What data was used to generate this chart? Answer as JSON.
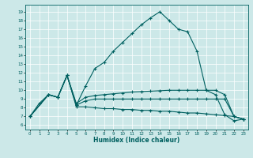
{
  "title": "",
  "xlabel": "Humidex (Indice chaleur)",
  "bg_color": "#cce8e8",
  "grid_color": "#ffffff",
  "line_color": "#006060",
  "xlim": [
    -0.5,
    23.5
  ],
  "ylim": [
    5.5,
    19.8
  ],
  "yticks": [
    6,
    7,
    8,
    9,
    10,
    11,
    12,
    13,
    14,
    15,
    16,
    17,
    18,
    19
  ],
  "xticks": [
    0,
    1,
    2,
    3,
    4,
    5,
    6,
    7,
    8,
    9,
    10,
    11,
    12,
    13,
    14,
    15,
    16,
    17,
    18,
    19,
    20,
    21,
    22,
    23
  ],
  "line1_x": [
    0,
    1,
    2,
    3,
    4,
    5,
    6,
    7,
    8,
    9,
    10,
    11,
    12,
    13,
    14,
    15,
    16,
    17,
    18,
    19,
    20,
    21,
    22,
    23
  ],
  "line1_y": [
    7.0,
    8.5,
    9.5,
    9.2,
    11.7,
    8.3,
    10.5,
    12.5,
    13.2,
    14.5,
    15.5,
    16.5,
    17.5,
    18.3,
    19.0,
    18.0,
    17.0,
    16.7,
    14.5,
    10.0,
    9.5,
    7.2,
    6.5,
    6.7
  ],
  "line2_x": [
    0,
    2,
    3,
    4,
    5,
    6,
    7,
    8,
    9,
    10,
    11,
    12,
    13,
    14,
    15,
    16,
    17,
    18,
    19,
    20,
    21,
    22,
    23
  ],
  "line2_y": [
    7.0,
    9.5,
    9.2,
    11.7,
    8.5,
    9.2,
    9.4,
    9.5,
    9.6,
    9.7,
    9.8,
    9.85,
    9.9,
    9.95,
    10.0,
    10.0,
    10.0,
    10.0,
    10.0,
    10.0,
    9.5,
    7.0,
    6.7
  ],
  "line3_x": [
    0,
    2,
    3,
    4,
    5,
    6,
    7,
    8,
    9,
    10,
    11,
    12,
    13,
    14,
    15,
    16,
    17,
    18,
    19,
    20,
    21,
    22,
    23
  ],
  "line3_y": [
    7.0,
    9.5,
    9.2,
    11.7,
    8.3,
    8.8,
    9.0,
    9.0,
    9.0,
    9.0,
    9.0,
    9.0,
    9.0,
    9.0,
    9.0,
    9.0,
    9.0,
    9.0,
    9.0,
    9.0,
    9.0,
    7.0,
    6.7
  ],
  "line4_x": [
    0,
    2,
    3,
    4,
    5,
    6,
    7,
    8,
    9,
    10,
    11,
    12,
    13,
    14,
    15,
    16,
    17,
    18,
    19,
    20,
    21,
    22,
    23
  ],
  "line4_y": [
    7.0,
    9.5,
    9.2,
    11.7,
    8.1,
    8.1,
    8.0,
    7.9,
    7.9,
    7.8,
    7.8,
    7.7,
    7.7,
    7.6,
    7.6,
    7.5,
    7.4,
    7.4,
    7.3,
    7.2,
    7.1,
    7.0,
    6.7
  ]
}
